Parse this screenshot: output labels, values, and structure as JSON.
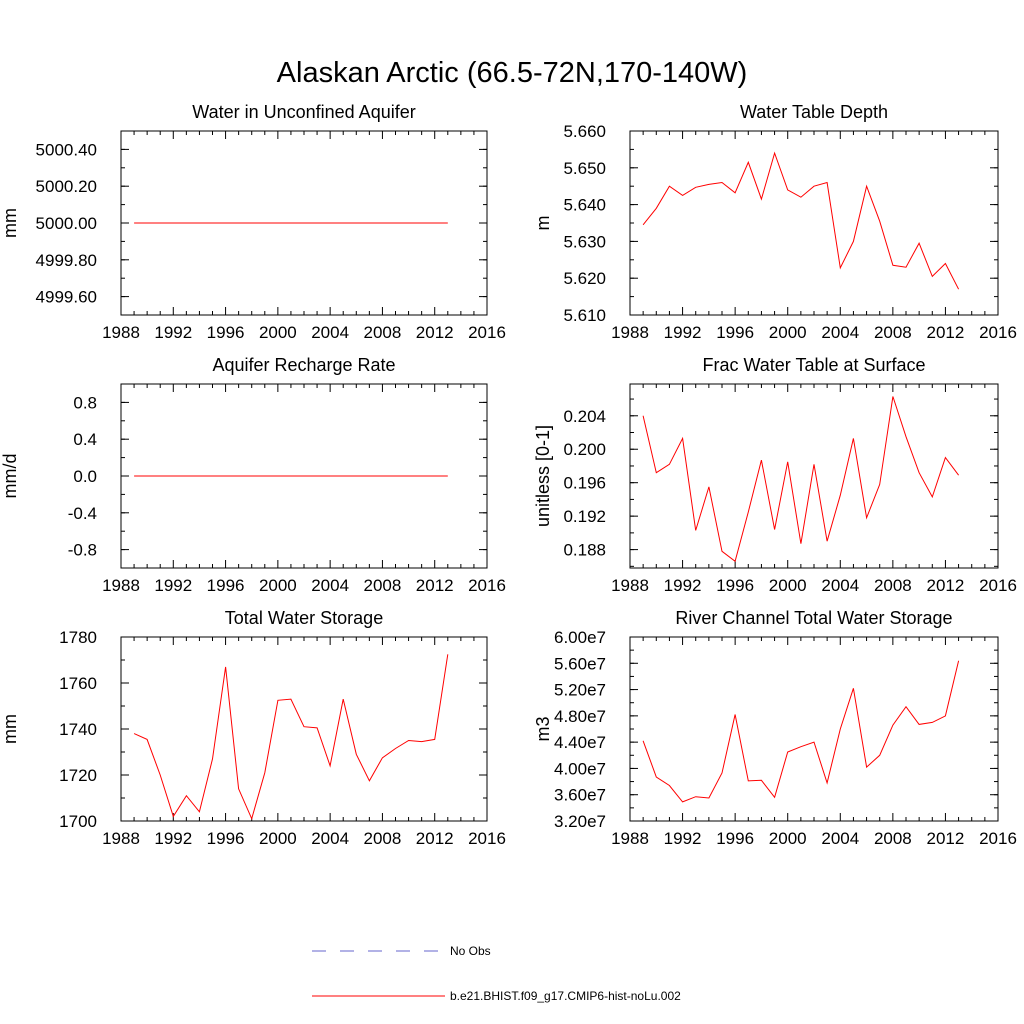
{
  "figure": {
    "title": "Alaskan Arctic (66.5-72N,170-140W)",
    "legend": [
      {
        "label": "No Obs",
        "color": "#6666cc",
        "dash": true
      },
      {
        "label": "b.e21.BHIST.f09_g17.CMIP6-hist-noLu.002",
        "color": "#ff0000",
        "dash": false
      }
    ]
  },
  "chart_data": [
    {
      "type": "line",
      "title": "Water in Unconfined Aquifer",
      "ylabel": "mm",
      "xlim": [
        1988,
        2016
      ],
      "ylim": [
        4999.5,
        5000.5
      ],
      "xticks": [
        "1988",
        "1992",
        "1996",
        "2000",
        "2004",
        "2008",
        "2012",
        "2016"
      ],
      "yticks": [
        "4999.60",
        "4999.80",
        "5000.00",
        "5000.20",
        "5000.40"
      ],
      "yticks_values": [
        4999.6,
        4999.8,
        5000.0,
        5000.2,
        5000.4
      ],
      "series": [
        {
          "color": "#ff0000",
          "x": [
            1989,
            1990,
            1991,
            1992,
            1993,
            1994,
            1995,
            1996,
            1997,
            1998,
            1999,
            2000,
            2001,
            2002,
            2003,
            2004,
            2005,
            2006,
            2007,
            2008,
            2009,
            2010,
            2011,
            2012,
            2013
          ],
          "values": [
            5000,
            5000,
            5000,
            5000,
            5000,
            5000,
            5000,
            5000,
            5000,
            5000,
            5000,
            5000,
            5000,
            5000,
            5000,
            5000,
            5000,
            5000,
            5000,
            5000,
            5000,
            5000,
            5000,
            5000,
            5000
          ]
        }
      ]
    },
    {
      "type": "line",
      "title": "Water Table Depth",
      "ylabel": "m",
      "xlim": [
        1988,
        2016
      ],
      "ylim": [
        5.61,
        5.66
      ],
      "xticks": [
        "1988",
        "1992",
        "1996",
        "2000",
        "2004",
        "2008",
        "2012",
        "2016"
      ],
      "yticks": [
        "5.610",
        "5.620",
        "5.630",
        "5.640",
        "5.650",
        "5.660"
      ],
      "yticks_values": [
        5.61,
        5.62,
        5.63,
        5.64,
        5.65,
        5.66
      ],
      "series": [
        {
          "color": "#ff0000",
          "x": [
            1989,
            1990,
            1991,
            1992,
            1993,
            1994,
            1995,
            1996,
            1997,
            1998,
            1999,
            2000,
            2001,
            2002,
            2003,
            2004,
            2005,
            2006,
            2007,
            2008,
            2009,
            2010,
            2011,
            2012,
            2013
          ],
          "values": [
            5.6345,
            5.639,
            5.645,
            5.6425,
            5.6447,
            5.6455,
            5.646,
            5.6432,
            5.6515,
            5.6415,
            5.654,
            5.644,
            5.642,
            5.645,
            5.646,
            5.6228,
            5.63,
            5.645,
            5.6355,
            5.6235,
            5.623,
            5.6295,
            5.6205,
            5.624,
            5.617
          ]
        }
      ]
    },
    {
      "type": "line",
      "title": "Aquifer Recharge Rate",
      "ylabel": "mm/d",
      "xlim": [
        1988,
        2016
      ],
      "ylim": [
        -1.0,
        1.0
      ],
      "xticks": [
        "1988",
        "1992",
        "1996",
        "2000",
        "2004",
        "2008",
        "2012",
        "2016"
      ],
      "yticks": [
        "-0.8",
        "-0.4",
        "0.0",
        "0.4",
        "0.8"
      ],
      "yticks_values": [
        -0.8,
        -0.4,
        0.0,
        0.4,
        0.8
      ],
      "series": [
        {
          "color": "#ff0000",
          "x": [
            1989,
            1990,
            1991,
            1992,
            1993,
            1994,
            1995,
            1996,
            1997,
            1998,
            1999,
            2000,
            2001,
            2002,
            2003,
            2004,
            2005,
            2006,
            2007,
            2008,
            2009,
            2010,
            2011,
            2012,
            2013
          ],
          "values": [
            0,
            0,
            0,
            0,
            0,
            0,
            0,
            0,
            0,
            0,
            0,
            0,
            0,
            0,
            0,
            0,
            0,
            0,
            0,
            0,
            0,
            0,
            0,
            0,
            0
          ]
        }
      ]
    },
    {
      "type": "line",
      "title": "Frac Water Table at Surface",
      "ylabel": "unitless [0-1]",
      "xlim": [
        1988,
        2016
      ],
      "ylim": [
        0.1858,
        0.2078
      ],
      "xticks": [
        "1988",
        "1992",
        "1996",
        "2000",
        "2004",
        "2008",
        "2012",
        "2016"
      ],
      "yticks": [
        "0.188",
        "0.192",
        "0.196",
        "0.200",
        "0.204"
      ],
      "yticks_values": [
        0.188,
        0.192,
        0.196,
        0.2,
        0.204
      ],
      "series": [
        {
          "color": "#ff0000",
          "x": [
            1989,
            1990,
            1991,
            1992,
            1993,
            1994,
            1995,
            1996,
            1997,
            1998,
            1999,
            2000,
            2001,
            2002,
            2003,
            2004,
            2005,
            2006,
            2007,
            2008,
            2009,
            2010,
            2011,
            2012,
            2013
          ],
          "values": [
            0.204,
            0.1972,
            0.1982,
            0.2013,
            0.1903,
            0.1955,
            0.1878,
            0.1866,
            0.1925,
            0.1987,
            0.1904,
            0.1985,
            0.1887,
            0.1982,
            0.189,
            0.1945,
            0.2013,
            0.1918,
            0.1958,
            0.2063,
            0.2015,
            0.1972,
            0.1943,
            0.199,
            0.1969
          ]
        }
      ]
    },
    {
      "type": "line",
      "title": "Total Water Storage",
      "ylabel": "mm",
      "xlim": [
        1988,
        2016
      ],
      "ylim": [
        1700,
        1780
      ],
      "xticks": [
        "1988",
        "1992",
        "1996",
        "2000",
        "2004",
        "2008",
        "2012",
        "2016"
      ],
      "yticks": [
        "1700",
        "1720",
        "1740",
        "1760",
        "1780"
      ],
      "yticks_values": [
        1700,
        1720,
        1740,
        1760,
        1780
      ],
      "series": [
        {
          "color": "#ff0000",
          "x": [
            1989,
            1990,
            1991,
            1992,
            1993,
            1994,
            1995,
            1996,
            1997,
            1998,
            1999,
            2000,
            2001,
            2002,
            2003,
            2004,
            2005,
            2006,
            2007,
            2008,
            2009,
            2010,
            2011,
            2012,
            2013
          ],
          "values": [
            1738,
            1735.5,
            1720,
            1702,
            1711,
            1704,
            1727,
            1767,
            1714,
            1701,
            1721,
            1752.5,
            1753,
            1741,
            1740.5,
            1724,
            1753,
            1729,
            1717.5,
            1727.5,
            1731.5,
            1735,
            1734.5,
            1735.5,
            1772.5
          ]
        }
      ]
    },
    {
      "type": "line",
      "title": "River Channel Total Water Storage",
      "ylabel": "m3",
      "xlim": [
        1988,
        2016
      ],
      "ylim": [
        32000000,
        60000000
      ],
      "xticks": [
        "1988",
        "1992",
        "1996",
        "2000",
        "2004",
        "2008",
        "2012",
        "2016"
      ],
      "yticks": [
        "3.20e7",
        "3.60e7",
        "4.00e7",
        "4.40e7",
        "4.80e7",
        "5.20e7",
        "5.60e7",
        "6.00e7"
      ],
      "yticks_values": [
        32000000,
        36000000,
        40000000,
        44000000,
        48000000,
        52000000,
        56000000,
        60000000
      ],
      "series": [
        {
          "color": "#ff0000",
          "x": [
            1989,
            1990,
            1991,
            1992,
            1993,
            1994,
            1995,
            1996,
            1997,
            1998,
            1999,
            2000,
            2001,
            2002,
            2003,
            2004,
            2005,
            2006,
            2007,
            2008,
            2009,
            2010,
            2011,
            2012,
            2013
          ],
          "values": [
            44200000,
            38700000,
            37400000,
            34900000,
            35700000,
            35500000,
            39300000,
            48200000,
            38100000,
            38200000,
            35600000,
            42500000,
            43300000,
            44000000,
            37800000,
            46000000,
            52200000,
            40200000,
            42000000,
            46600000,
            49400000,
            46700000,
            47000000,
            48000000,
            56400000
          ]
        }
      ]
    }
  ]
}
